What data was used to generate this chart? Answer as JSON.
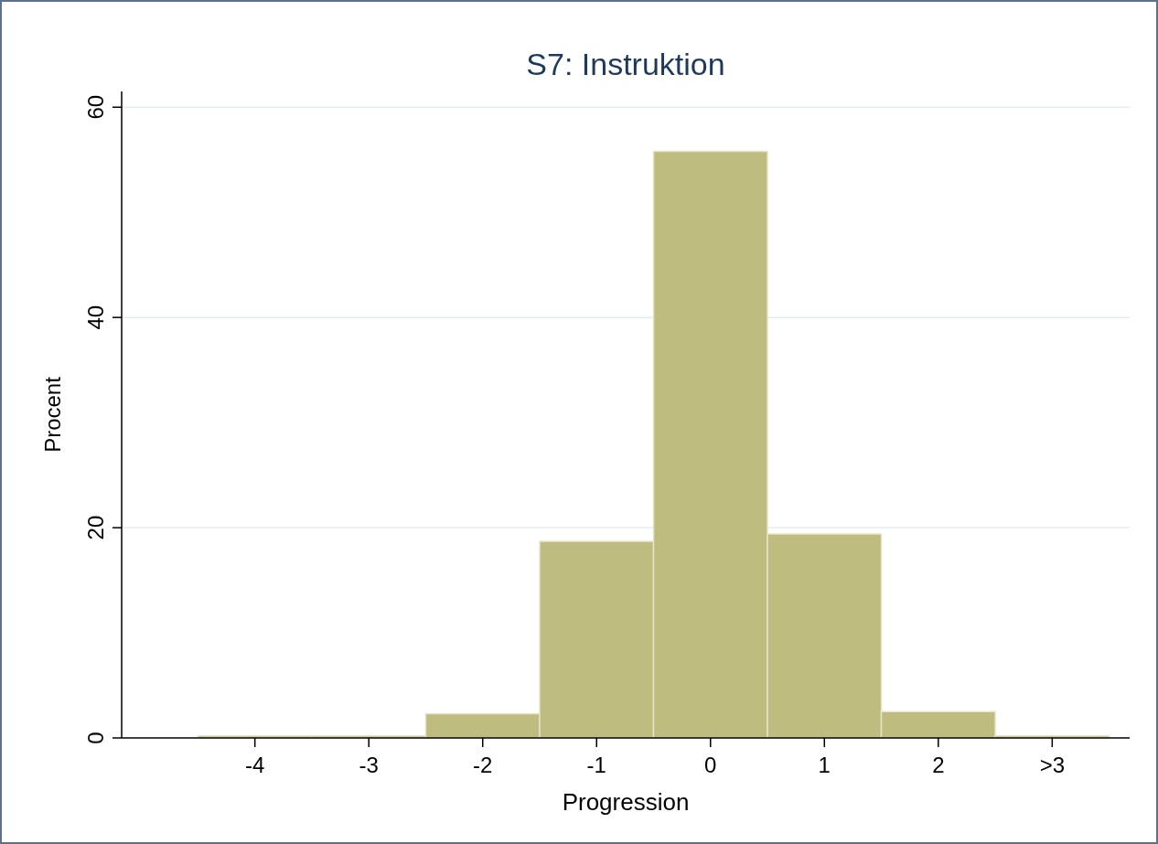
{
  "chart_data": {
    "type": "histogram",
    "title": "S7: Instruktion",
    "xlabel": "Progression",
    "ylabel": "Procent",
    "bins": [
      -4.5,
      -3.5,
      -2.5,
      -1.5,
      -0.5,
      0.5,
      1.5,
      2.5,
      3.5
    ],
    "values": [
      0.2,
      0.2,
      2.3,
      18.7,
      55.8,
      19.4,
      2.5,
      0.2
    ],
    "color": "#bfbc80",
    "xlim": [
      -5.17,
      3.68
    ],
    "ylim": [
      0,
      61.5
    ],
    "xticks": [
      -4,
      -3,
      -2,
      -1,
      0,
      1,
      2,
      {
        "value": 3,
        "label": ">3"
      }
    ],
    "yticks": [
      0,
      20,
      40,
      60
    ],
    "grid": "y"
  }
}
